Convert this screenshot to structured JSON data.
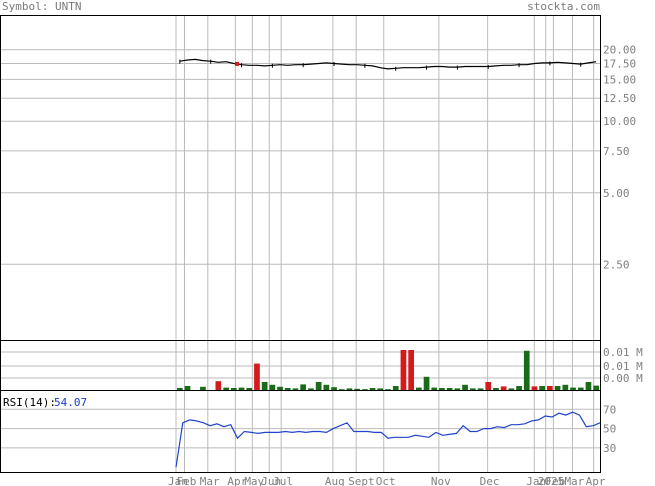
{
  "header": {
    "symbol_label": "Symbol:",
    "symbol": "UNTN",
    "site": "stockta.com"
  },
  "rsi": {
    "label": "RSI(14):",
    "value": "54.07"
  },
  "colors": {
    "up": "#1a6b1a",
    "down": "#d41a1a",
    "rsi_line": "#2244cc",
    "grid": "#bbbbbb",
    "frame": "#000000",
    "label": "#808080",
    "rsi_value": "#1a3ccc"
  },
  "chart_data": [
    {
      "type": "line",
      "name": "price",
      "scale": "log",
      "ylim": [
        1.2,
        28
      ],
      "y_ticks": [
        "20.00",
        "17.50",
        "15.00",
        "12.50",
        "10.00",
        "7.50",
        "5.00",
        "2.50"
      ],
      "x_ticks": [
        "Jan",
        "Feb",
        "Mar",
        "Apr",
        "May",
        "Jun",
        "Jul",
        "Aug",
        "Sept",
        "Oct",
        "Nov",
        "Dec",
        "Jan",
        "2025",
        "Feb",
        "Mar",
        "Apr"
      ],
      "x_tick_fraction": [
        0.0,
        0.02,
        0.075,
        0.14,
        0.18,
        0.22,
        0.248,
        0.37,
        0.425,
        0.49,
        0.62,
        0.735,
        0.845,
        0.872,
        0.89,
        0.935,
        0.985
      ],
      "prices": [
        17.9,
        18.1,
        18.2,
        18.0,
        17.9,
        17.7,
        17.8,
        17.5,
        17.3,
        17.2,
        17.2,
        17.1,
        17.2,
        17.3,
        17.2,
        17.3,
        17.3,
        17.4,
        17.5,
        17.6,
        17.5,
        17.4,
        17.3,
        17.3,
        17.2,
        17.1,
        16.8,
        16.6,
        16.7,
        16.8,
        16.8,
        16.8,
        16.9,
        17.0,
        17.0,
        16.9,
        16.9,
        17.0,
        17.0,
        17.0,
        17.0,
        17.1,
        17.2,
        17.2,
        17.3,
        17.3,
        17.5,
        17.6,
        17.6,
        17.7,
        17.6,
        17.5,
        17.4,
        17.6,
        17.8
      ]
    },
    {
      "type": "bar",
      "name": "volume",
      "y_ticks": [
        "0.01 M",
        "0.01 M",
        "0.00 M"
      ],
      "values": [
        0.05,
        0.1,
        0.0,
        0.08,
        0.0,
        0.22,
        0.06,
        0.05,
        0.06,
        0.05,
        0.66,
        0.2,
        0.13,
        0.08,
        0.05,
        0.04,
        0.14,
        0.04,
        0.2,
        0.13,
        0.07,
        0.02,
        0.04,
        0.03,
        0.02,
        0.05,
        0.04,
        0.02,
        0.1,
        1.0,
        1.0,
        0.06,
        0.33,
        0.06,
        0.05,
        0.05,
        0.04,
        0.13,
        0.04,
        0.04,
        0.2,
        0.05,
        0.09,
        0.04,
        0.1,
        0.98,
        0.09,
        0.1,
        0.1,
        0.1,
        0.13,
        0.06,
        0.06,
        0.2,
        0.11
      ],
      "direction": [
        "u",
        "u",
        "u",
        "u",
        "u",
        "d",
        "u",
        "u",
        "u",
        "u",
        "d",
        "u",
        "u",
        "u",
        "u",
        "u",
        "u",
        "u",
        "u",
        "u",
        "u",
        "u",
        "u",
        "u",
        "u",
        "u",
        "u",
        "u",
        "u",
        "d",
        "d",
        "u",
        "u",
        "u",
        "u",
        "u",
        "u",
        "u",
        "u",
        "u",
        "d",
        "u",
        "d",
        "u",
        "u",
        "u",
        "d",
        "u",
        "d",
        "u",
        "u",
        "u",
        "u",
        "u",
        "u"
      ]
    },
    {
      "type": "line",
      "name": "RSI(14)",
      "y_ticks": [
        "70",
        "50",
        "30"
      ],
      "ylim": [
        5,
        90
      ],
      "values": [
        10,
        56,
        59,
        58,
        56,
        53,
        55,
        52,
        54,
        40,
        47,
        46,
        45,
        46,
        46,
        46,
        47,
        46,
        47,
        46,
        47,
        47,
        46,
        50,
        53,
        56,
        47,
        47,
        47,
        46,
        46,
        40,
        41,
        41,
        41,
        43,
        42,
        41,
        46,
        43,
        44,
        45,
        53,
        47,
        47,
        50,
        50,
        52,
        51,
        54,
        54,
        55,
        58,
        59,
        63,
        62,
        66,
        64,
        67,
        64,
        52,
        53,
        56
      ]
    }
  ]
}
